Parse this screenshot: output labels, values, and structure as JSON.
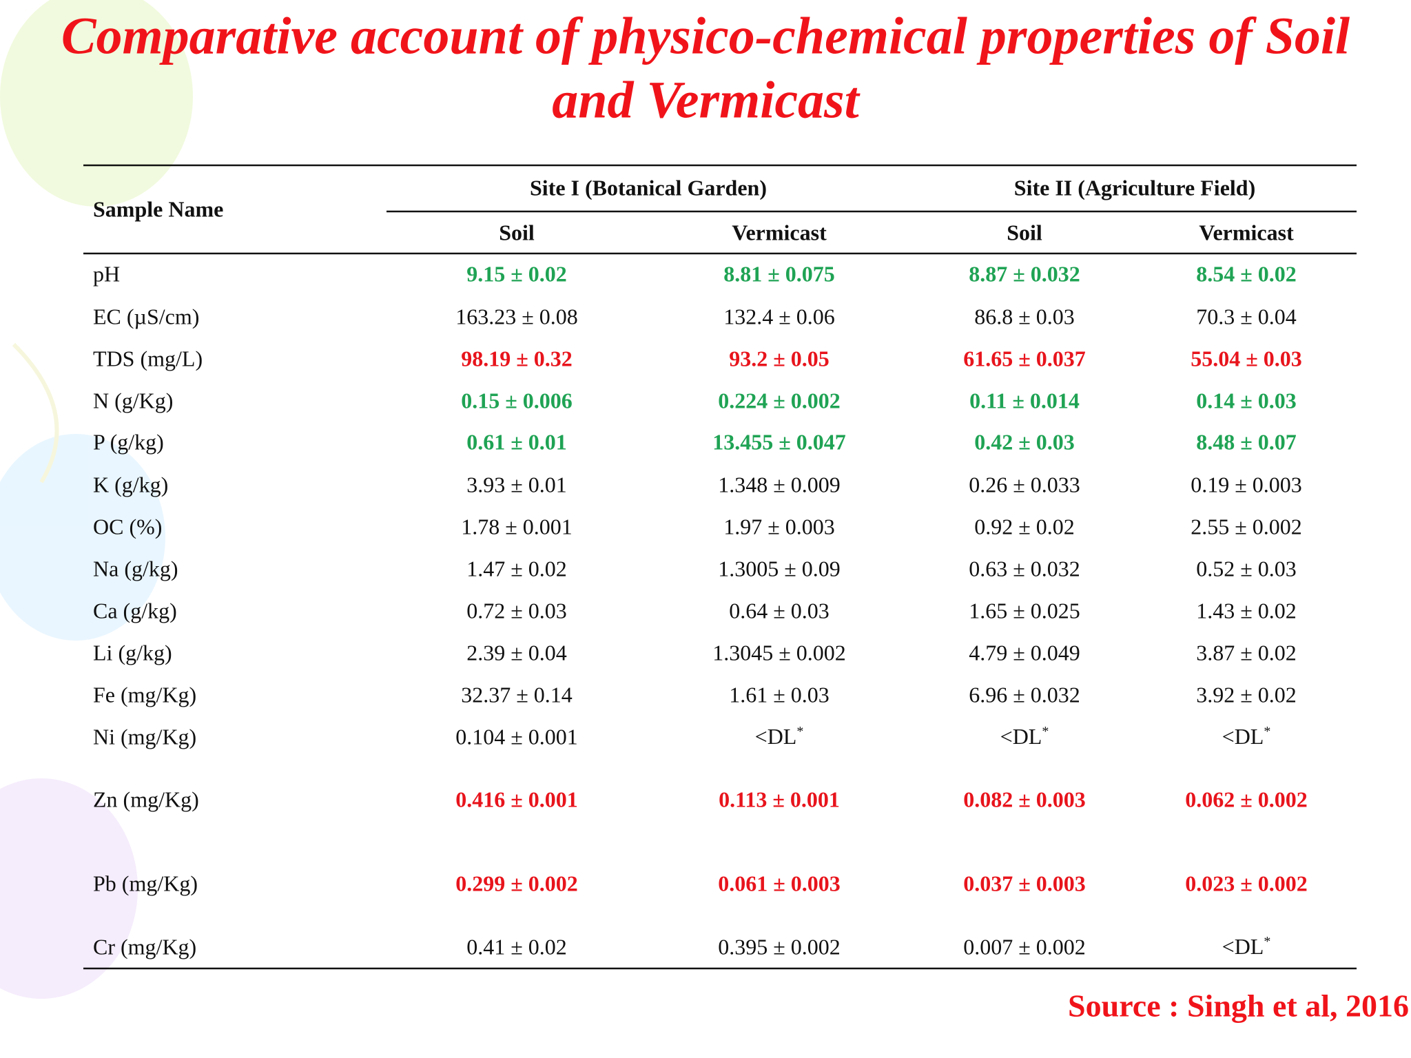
{
  "title": "Comparative account of physico-chemical properties of Soil and Vermicast",
  "table": {
    "row_header": "Sample Name",
    "groups": [
      "Site I (Botanical Garden)",
      "Site II (Agriculture Field)"
    ],
    "columns": [
      "Soil",
      "Vermicast",
      "Soil",
      "Vermicast"
    ],
    "rows": [
      {
        "label": "pH",
        "color": "#1fa354",
        "bold": true,
        "cells": [
          "9.15 ± 0.02",
          "8.81 ± 0.075",
          "8.87 ± 0.032",
          "8.54 ± 0.02"
        ]
      },
      {
        "label": "EC (µS/cm)",
        "cells": [
          "163.23 ± 0.08",
          "132.4 ± 0.06",
          "86.8 ± 0.03",
          "70.3 ± 0.04"
        ]
      },
      {
        "label": "TDS (mg/L)",
        "color": "#e8141c",
        "bold": true,
        "cells": [
          "98.19 ± 0.32",
          "93.2 ± 0.05",
          "61.65 ± 0.037",
          "55.04 ± 0.03"
        ]
      },
      {
        "label": "N (g/Kg)",
        "color": "#1fa354",
        "bold": true,
        "cells": [
          "0.15 ± 0.006",
          "0.224 ± 0.002",
          "0.11 ± 0.014",
          "0.14 ± 0.03"
        ]
      },
      {
        "label": "P (g/kg)",
        "color": "#1fa354",
        "bold": true,
        "cells": [
          "0.61 ± 0.01",
          "13.455 ± 0.047",
          "0.42 ± 0.03",
          "8.48 ± 0.07"
        ]
      },
      {
        "label": "K (g/kg)",
        "cells": [
          "3.93 ± 0.01",
          "1.348 ± 0.009",
          "0.26 ± 0.033",
          "0.19 ± 0.003"
        ]
      },
      {
        "label": "OC (%)",
        "cells": [
          "1.78 ± 0.001",
          "1.97 ± 0.003",
          "0.92 ± 0.02",
          "2.55 ± 0.002"
        ]
      },
      {
        "label": "Na (g/kg)",
        "cells": [
          "1.47 ± 0.02",
          "1.3005 ± 0.09",
          "0.63 ± 0.032",
          "0.52 ± 0.03"
        ]
      },
      {
        "label": "Ca (g/kg)",
        "cells": [
          "0.72 ± 0.03",
          "0.64 ± 0.03",
          "1.65 ± 0.025",
          "1.43 ± 0.02"
        ]
      },
      {
        "label": "Li (g/kg)",
        "cells": [
          "2.39 ± 0.04",
          "1.3045 ± 0.002",
          "4.79 ± 0.049",
          "3.87 ± 0.02"
        ]
      },
      {
        "label": "Fe (mg/Kg)",
        "cells": [
          "32.37 ± 0.14",
          "1.61 ± 0.03",
          "6.96 ± 0.032",
          "3.92 ± 0.02"
        ]
      },
      {
        "label": "Ni (mg/Kg)",
        "cells": [
          "0.104 ± 0.001",
          {
            "text": "<DL",
            "sup": "*"
          },
          {
            "text": "<DL",
            "sup": "*"
          },
          {
            "text": "<DL",
            "sup": "*"
          }
        ]
      },
      {
        "label": "Zn (mg/Kg)",
        "color": "#e8141c",
        "bold": true,
        "cells": [
          "0.416 ± 0.001",
          "0.113 ± 0.001",
          "0.082 ± 0.003",
          "0.062 ± 0.002"
        ]
      },
      {
        "label": "Pb (mg/Kg)",
        "color": "#e8141c",
        "bold": true,
        "cells": [
          "0.299 ± 0.002",
          "0.061 ± 0.003",
          "0.037 ± 0.003",
          "0.023 ± 0.002"
        ]
      },
      {
        "label": "Cr (mg/Kg)",
        "cells": [
          "0.41 ± 0.02",
          "0.395 ± 0.002",
          "0.007 ± 0.002",
          {
            "text": "<DL",
            "sup": "*"
          }
        ]
      }
    ]
  },
  "source": "Source : Singh et al, 2016"
}
